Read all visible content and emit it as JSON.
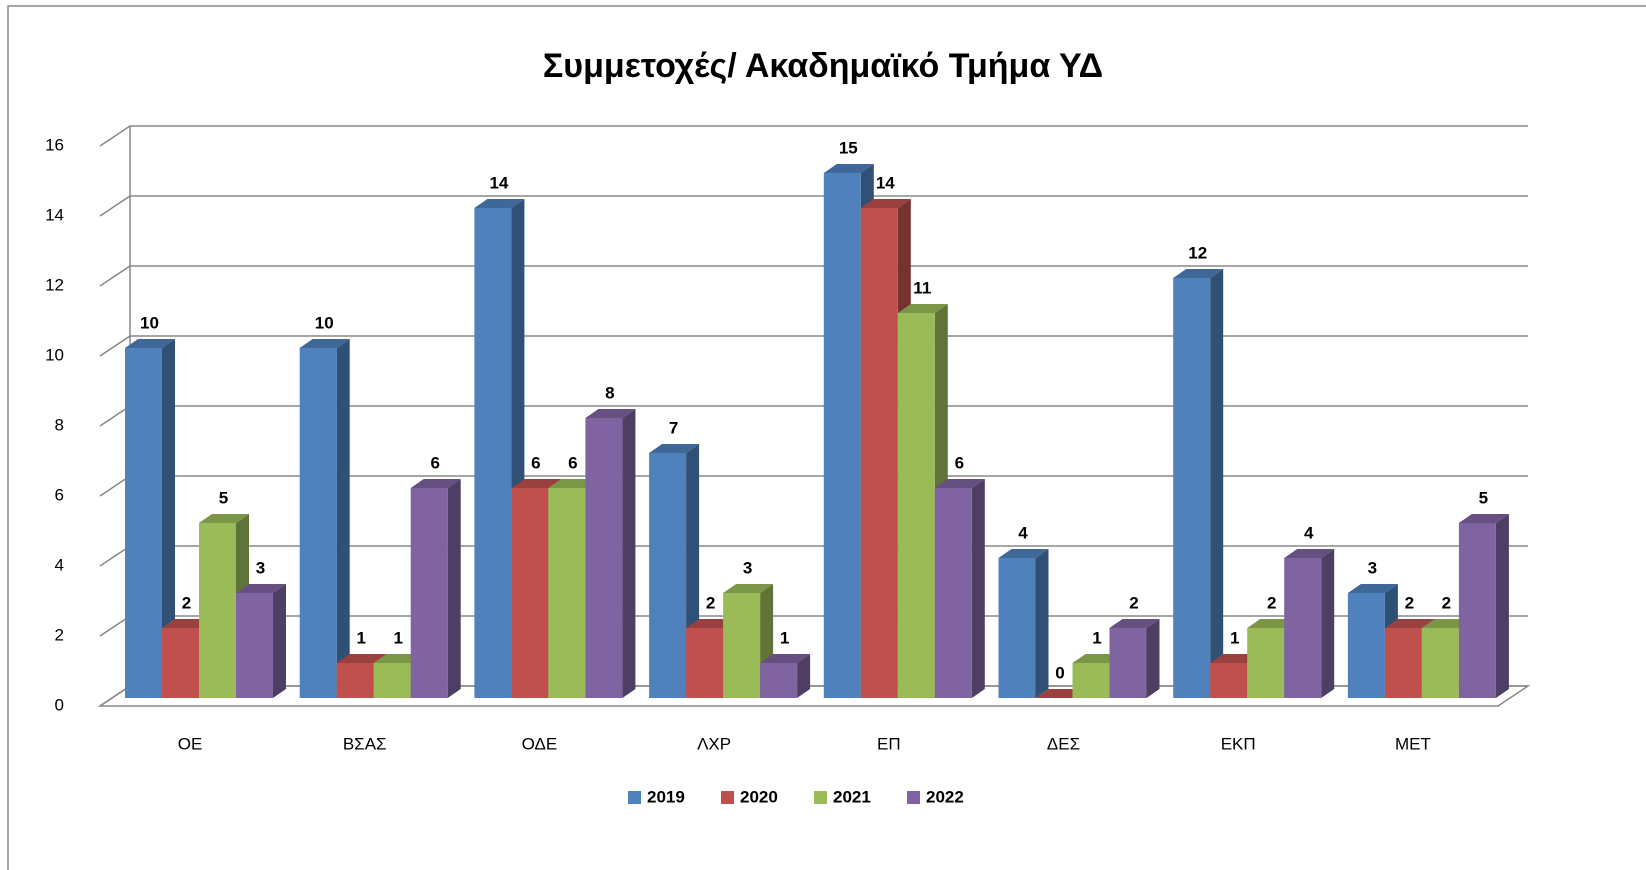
{
  "chart_data": {
    "type": "bar3d",
    "title": "Συμμετοχές/ Ακαδημαϊκό Τμήμα ΥΔ",
    "categories": [
      "ΟΕ",
      "ΒΣΑΣ",
      "ΟΔΕ",
      "ΛΧΡ",
      "ΕΠ",
      "ΔΕΣ",
      "ΕΚΠ",
      "ΜΕΤ"
    ],
    "series": [
      {
        "name": "2019",
        "color": "#4f81bd",
        "values": [
          10,
          10,
          14,
          7,
          15,
          4,
          12,
          3
        ]
      },
      {
        "name": "2020",
        "color": "#c0504d",
        "values": [
          2,
          1,
          6,
          2,
          14,
          0,
          1,
          2
        ]
      },
      {
        "name": "2021",
        "color": "#9bbb59",
        "values": [
          5,
          1,
          6,
          3,
          11,
          1,
          2,
          2
        ]
      },
      {
        "name": "2022",
        "color": "#8064a2",
        "values": [
          3,
          6,
          8,
          1,
          6,
          2,
          4,
          5
        ]
      }
    ],
    "ylim": [
      0,
      16
    ],
    "yticks": [
      0,
      2,
      4,
      6,
      8,
      10,
      12,
      14,
      16
    ],
    "grid": true,
    "legend": "bottom"
  }
}
